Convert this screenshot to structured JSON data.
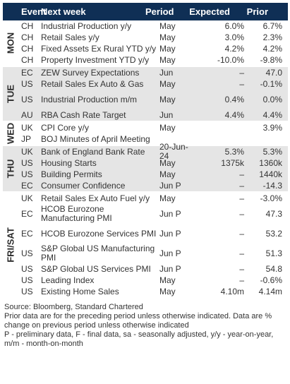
{
  "header": {
    "event": "Event",
    "next_week": "Next week",
    "period": "Period",
    "expected": "Expected",
    "prior": "Prior"
  },
  "groups": [
    {
      "day": "MON",
      "shaded": false,
      "rows": [
        {
          "country": "CH",
          "event": "Industrial Production y/y",
          "period": "May",
          "expected": "6.0%",
          "prior": "6.7%"
        },
        {
          "country": "CH",
          "event": "Retail Sales y/y",
          "period": "May",
          "expected": "3.0%",
          "prior": "2.3%"
        },
        {
          "country": "CH",
          "event": "Fixed Assets Ex Rural YTD y/y",
          "period": "May",
          "expected": "4.2%",
          "prior": "4.2%"
        },
        {
          "country": "CH",
          "event": "Property Investment YTD y/y",
          "period": "May",
          "expected": "-10.0%",
          "prior": "-9.8%"
        }
      ]
    },
    {
      "day": "TUE",
      "shaded": true,
      "rows": [
        {
          "country": "EC",
          "event": "ZEW Survey Expectations",
          "period": "Jun",
          "expected": "–",
          "prior": "47.0"
        },
        {
          "country": "US",
          "event": "Retail Sales Ex Auto & Gas",
          "period": "May",
          "expected": "–",
          "prior": "-0.1%"
        },
        {
          "country": "US",
          "event": "Industrial Production m/m",
          "period": "May",
          "expected": "0.4%",
          "prior": "0.0%"
        },
        {
          "country": "AU",
          "event": "RBA Cash Rate Target",
          "period": "Jun",
          "expected": "4.4%",
          "prior": "4.4%"
        }
      ]
    },
    {
      "day": "WED",
      "shaded": false,
      "rows": [
        {
          "country": "UK",
          "event": "CPI Core y/y",
          "period": "May",
          "expected": "",
          "prior": "3.9%"
        },
        {
          "country": "JP",
          "event": "BOJ Minutes of April Meeting",
          "period": "",
          "expected": "",
          "prior": ""
        }
      ]
    },
    {
      "day": "THU",
      "shaded": true,
      "rows": [
        {
          "country": "UK",
          "event": "Bank of England Bank Rate",
          "period": "20-Jun-24",
          "expected": "5.3%",
          "prior": "5.3%"
        },
        {
          "country": "US",
          "event": "Housing Starts",
          "period": "May",
          "expected": "1375k",
          "prior": "1360k"
        },
        {
          "country": "US",
          "event": "Building Permits",
          "period": "May",
          "expected": "–",
          "prior": "1440k"
        },
        {
          "country": "EC",
          "event": "Consumer Confidence",
          "period": "Jun P",
          "expected": "–",
          "prior": "-14.3"
        }
      ]
    },
    {
      "day": "FRI/SAT",
      "shaded": false,
      "rows": [
        {
          "country": "UK",
          "event": "Retail Sales Ex Auto Fuel y/y",
          "period": "May",
          "expected": "–",
          "prior": "-3.0%"
        },
        {
          "country": "EC",
          "event": "HCOB Eurozone Manufacturing PMI",
          "period": "Jun P",
          "expected": "–",
          "prior": "47.3"
        },
        {
          "country": "EC",
          "event": "HCOB Eurozone Services PMI",
          "period": "Jun P",
          "expected": "–",
          "prior": "53.2"
        },
        {
          "country": "US",
          "event": "S&P Global US Manufacturing PMI",
          "period": "Jun P",
          "expected": "–",
          "prior": "51.3"
        },
        {
          "country": "US",
          "event": "S&P Global US Services PMI",
          "period": "Jun P",
          "expected": "–",
          "prior": "54.8"
        },
        {
          "country": "US",
          "event": "Leading Index",
          "period": "May",
          "expected": "–",
          "prior": "-0.6%"
        },
        {
          "country": "US",
          "event": "Existing Home Sales",
          "period": "May",
          "expected": "4.10m",
          "prior": "4.14m"
        }
      ]
    }
  ],
  "footer": {
    "source": "Source: Bloomberg, Standard Chartered",
    "note1": "Prior data are for the preceding period unless otherwise indicated. Data are % change on previous period unless otherwise indicated",
    "note2": "P - preliminary data, F - final data, sa - seasonally adjusted, y/y - year-on-year, m/m - month-on-month"
  }
}
